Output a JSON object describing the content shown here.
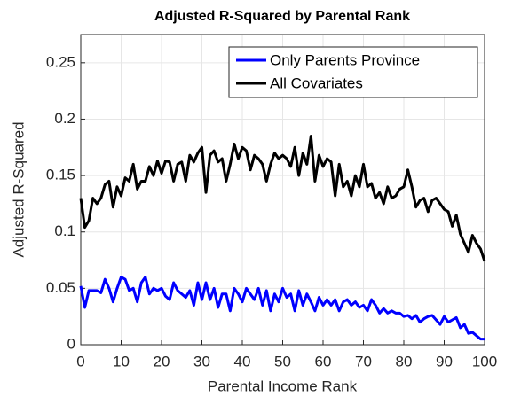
{
  "chart_data": {
    "type": "line",
    "title": "Adjusted R-Squared by Parental Rank",
    "x_label": "Parental Income Rank",
    "y_label": "Adjusted R-Squared",
    "x": [
      0,
      1,
      2,
      3,
      4,
      5,
      6,
      7,
      8,
      9,
      10,
      11,
      12,
      13,
      14,
      15,
      16,
      17,
      18,
      19,
      20,
      21,
      22,
      23,
      24,
      25,
      26,
      27,
      28,
      29,
      30,
      31,
      32,
      33,
      34,
      35,
      36,
      37,
      38,
      39,
      40,
      41,
      42,
      43,
      44,
      45,
      46,
      47,
      48,
      49,
      50,
      51,
      52,
      53,
      54,
      55,
      56,
      57,
      58,
      59,
      60,
      61,
      62,
      63,
      64,
      65,
      66,
      67,
      68,
      69,
      70,
      71,
      72,
      73,
      74,
      75,
      76,
      77,
      78,
      79,
      80,
      81,
      82,
      83,
      84,
      85,
      86,
      87,
      88,
      89,
      90,
      91,
      92,
      93,
      94,
      95,
      96,
      97,
      98,
      99,
      100
    ],
    "series": [
      {
        "name": "Only Parents Province",
        "color": "#0000ff",
        "values": [
          0.052,
          0.033,
          0.048,
          0.048,
          0.048,
          0.046,
          0.058,
          0.05,
          0.038,
          0.05,
          0.06,
          0.058,
          0.048,
          0.05,
          0.038,
          0.055,
          0.06,
          0.045,
          0.05,
          0.048,
          0.05,
          0.043,
          0.04,
          0.055,
          0.048,
          0.045,
          0.042,
          0.048,
          0.035,
          0.055,
          0.04,
          0.055,
          0.04,
          0.05,
          0.033,
          0.045,
          0.045,
          0.03,
          0.05,
          0.045,
          0.038,
          0.05,
          0.045,
          0.04,
          0.05,
          0.035,
          0.048,
          0.03,
          0.045,
          0.038,
          0.05,
          0.042,
          0.045,
          0.03,
          0.048,
          0.035,
          0.045,
          0.038,
          0.03,
          0.042,
          0.035,
          0.04,
          0.035,
          0.04,
          0.03,
          0.038,
          0.04,
          0.035,
          0.038,
          0.033,
          0.035,
          0.03,
          0.04,
          0.035,
          0.028,
          0.032,
          0.028,
          0.03,
          0.028,
          0.028,
          0.025,
          0.026,
          0.023,
          0.026,
          0.02,
          0.023,
          0.025,
          0.026,
          0.022,
          0.018,
          0.025,
          0.02,
          0.022,
          0.024,
          0.015,
          0.018,
          0.01,
          0.011,
          0.008,
          0.005,
          0.005
        ]
      },
      {
        "name": "All Covariates",
        "color": "#000000",
        "values": [
          0.13,
          0.104,
          0.11,
          0.13,
          0.125,
          0.13,
          0.142,
          0.145,
          0.122,
          0.14,
          0.132,
          0.148,
          0.145,
          0.16,
          0.138,
          0.145,
          0.145,
          0.158,
          0.15,
          0.163,
          0.152,
          0.163,
          0.162,
          0.145,
          0.16,
          0.162,
          0.145,
          0.168,
          0.162,
          0.17,
          0.175,
          0.135,
          0.168,
          0.172,
          0.162,
          0.165,
          0.145,
          0.16,
          0.178,
          0.165,
          0.175,
          0.172,
          0.155,
          0.168,
          0.165,
          0.16,
          0.145,
          0.16,
          0.17,
          0.165,
          0.168,
          0.165,
          0.158,
          0.175,
          0.15,
          0.17,
          0.16,
          0.185,
          0.145,
          0.168,
          0.158,
          0.165,
          0.162,
          0.132,
          0.16,
          0.14,
          0.145,
          0.132,
          0.15,
          0.14,
          0.16,
          0.14,
          0.143,
          0.13,
          0.135,
          0.125,
          0.14,
          0.13,
          0.132,
          0.138,
          0.14,
          0.155,
          0.14,
          0.122,
          0.128,
          0.13,
          0.118,
          0.128,
          0.13,
          0.125,
          0.12,
          0.118,
          0.105,
          0.115,
          0.098,
          0.09,
          0.082,
          0.097,
          0.09,
          0.085,
          0.074
        ]
      }
    ],
    "xlim": [
      0,
      100
    ],
    "xticks": [
      0,
      10,
      20,
      30,
      40,
      50,
      60,
      70,
      80,
      90,
      100
    ],
    "ylim": [
      0,
      0.275
    ],
    "yticks": [
      0,
      0.05,
      0.1,
      0.15,
      0.2,
      0.25
    ],
    "grid": true,
    "legend": "northeast"
  }
}
